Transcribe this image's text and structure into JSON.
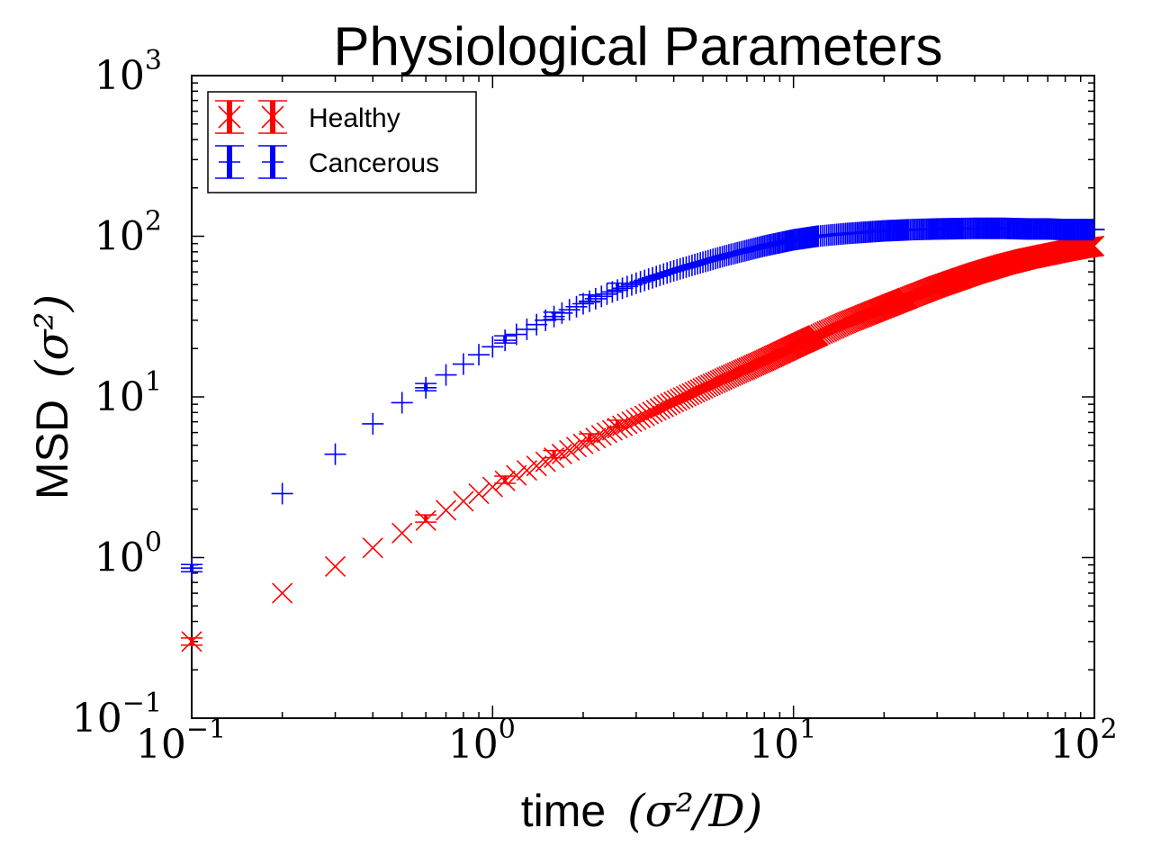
{
  "chart_data": {
    "type": "scatter",
    "title": "Physiological Parameters",
    "xlabel": {
      "text": "time",
      "math": "(σ²/D)"
    },
    "ylabel": {
      "text": "MSD",
      "math": "(σ²)"
    },
    "xscale": "log",
    "yscale": "log",
    "xlim": [
      0.1,
      100
    ],
    "ylim": [
      0.1,
      1000
    ],
    "xticks": [
      {
        "base": "10",
        "exp": "−1",
        "value": 0.1
      },
      {
        "base": "10",
        "exp": "0",
        "value": 1
      },
      {
        "base": "10",
        "exp": "1",
        "value": 10
      },
      {
        "base": "10",
        "exp": "2",
        "value": 100
      }
    ],
    "yticks": [
      {
        "base": "10",
        "exp": "−1",
        "value": 0.1
      },
      {
        "base": "10",
        "exp": "0",
        "value": 1
      },
      {
        "base": "10",
        "exp": "1",
        "value": 10
      },
      {
        "base": "10",
        "exp": "2",
        "value": 100
      },
      {
        "base": "10",
        "exp": "3",
        "value": 1000
      }
    ],
    "legend": {
      "position": "top-left"
    },
    "series": [
      {
        "name": "Healthy",
        "color": "#ff0000",
        "marker": "x",
        "x": [
          0.1,
          0.2,
          0.3,
          0.4,
          0.5,
          0.6,
          0.7,
          0.8,
          1,
          1.2,
          1.5,
          2,
          2.5,
          3,
          4,
          5,
          6,
          8,
          10,
          12,
          15,
          20,
          25,
          30,
          40,
          50,
          60,
          70,
          80,
          90,
          100
        ],
        "y": [
          0.3,
          0.6,
          0.88,
          1.15,
          1.42,
          1.7,
          1.97,
          2.24,
          2.75,
          3.25,
          3.95,
          5.1,
          6.2,
          7.2,
          9.3,
          11.3,
          13.2,
          16.8,
          20.5,
          24,
          29,
          36,
          42.5,
          48.5,
          58.5,
          66.5,
          72.5,
          77,
          81,
          84.5,
          87
        ]
      },
      {
        "name": "Cancerous",
        "color": "#0000ff",
        "marker": "+",
        "x": [
          0.1,
          0.2,
          0.3,
          0.4,
          0.5,
          0.6,
          0.7,
          0.8,
          0.9,
          1,
          1.2,
          1.5,
          2,
          2.5,
          3,
          4,
          5,
          6,
          8,
          10,
          12,
          15,
          20,
          25,
          30,
          40,
          50,
          60,
          70,
          80,
          90,
          100
        ],
        "y": [
          0.86,
          2.5,
          4.4,
          6.8,
          9.2,
          11.4,
          13.7,
          16,
          18.3,
          20.5,
          24.5,
          30,
          38,
          45,
          51,
          61,
          69,
          76,
          87,
          95,
          100,
          104,
          108,
          110,
          111,
          112,
          112,
          111,
          111,
          110,
          110,
          110
        ]
      }
    ],
    "error_bars": [
      {
        "series": "Healthy",
        "x": [
          0.1,
          0.6,
          1.1,
          1.6,
          2.1,
          2.6
        ],
        "y": [
          0.3,
          1.75,
          3.05,
          4.4,
          5.6,
          6.8
        ]
      },
      {
        "series": "Cancerous",
        "x": [
          0.1,
          0.6,
          1.1,
          1.6,
          2.1,
          2.6
        ],
        "y": [
          0.86,
          11.5,
          22.8,
          32,
          41,
          48.5
        ]
      }
    ]
  }
}
